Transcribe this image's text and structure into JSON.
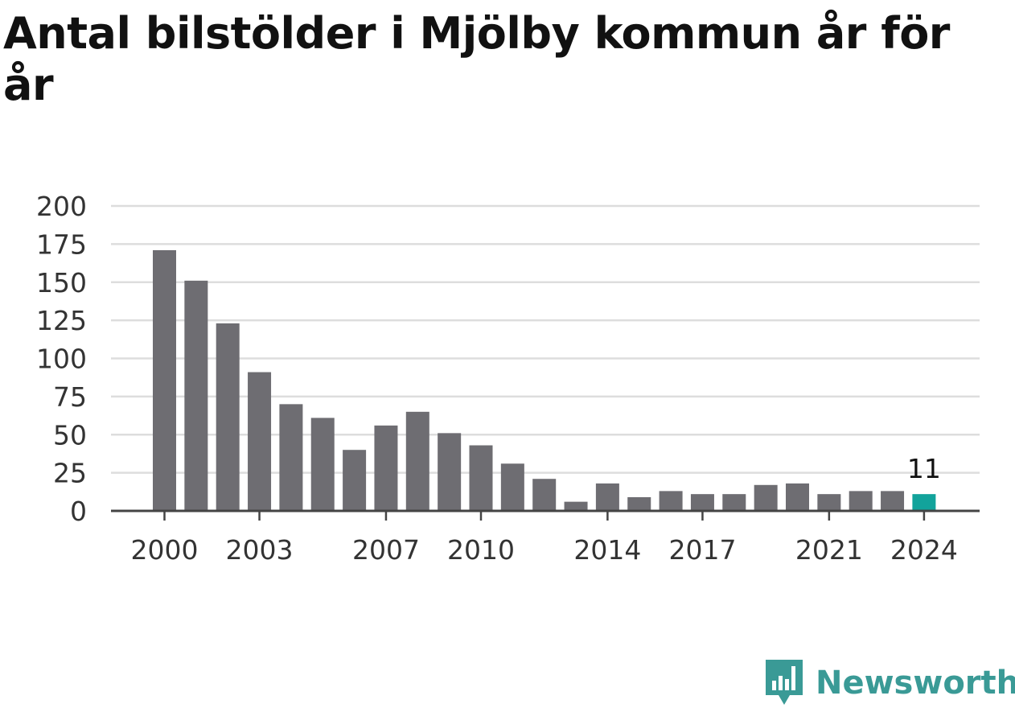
{
  "chart_data": {
    "type": "bar",
    "title": "Antal bilstölder i Mjölby kommun år för år",
    "xlabel": "",
    "ylabel": "",
    "categories": [
      2000,
      2001,
      2002,
      2003,
      2004,
      2005,
      2006,
      2007,
      2008,
      2009,
      2010,
      2011,
      2012,
      2013,
      2014,
      2015,
      2016,
      2017,
      2018,
      2019,
      2020,
      2021,
      2022,
      2023,
      2024
    ],
    "values": [
      171,
      151,
      123,
      91,
      70,
      61,
      40,
      56,
      65,
      51,
      43,
      31,
      21,
      6,
      18,
      9,
      13,
      11,
      11,
      17,
      18,
      11,
      13,
      13,
      11
    ],
    "ylim": [
      0,
      200
    ],
    "yticks": [
      0,
      25,
      50,
      75,
      100,
      125,
      150,
      175,
      200
    ],
    "xticks": [
      2000,
      2003,
      2007,
      2010,
      2014,
      2017,
      2021,
      2024
    ],
    "highlight": {
      "category": 2024,
      "label": "11"
    },
    "grid": true,
    "colors": {
      "bar": "#6e6d72",
      "highlight": "#12a39b",
      "grid": "#dddddd",
      "axis": "#444444"
    }
  },
  "brand": {
    "name": "Newsworthy",
    "icon": "newsworthy-logo-icon",
    "color": "#3a9a96"
  }
}
